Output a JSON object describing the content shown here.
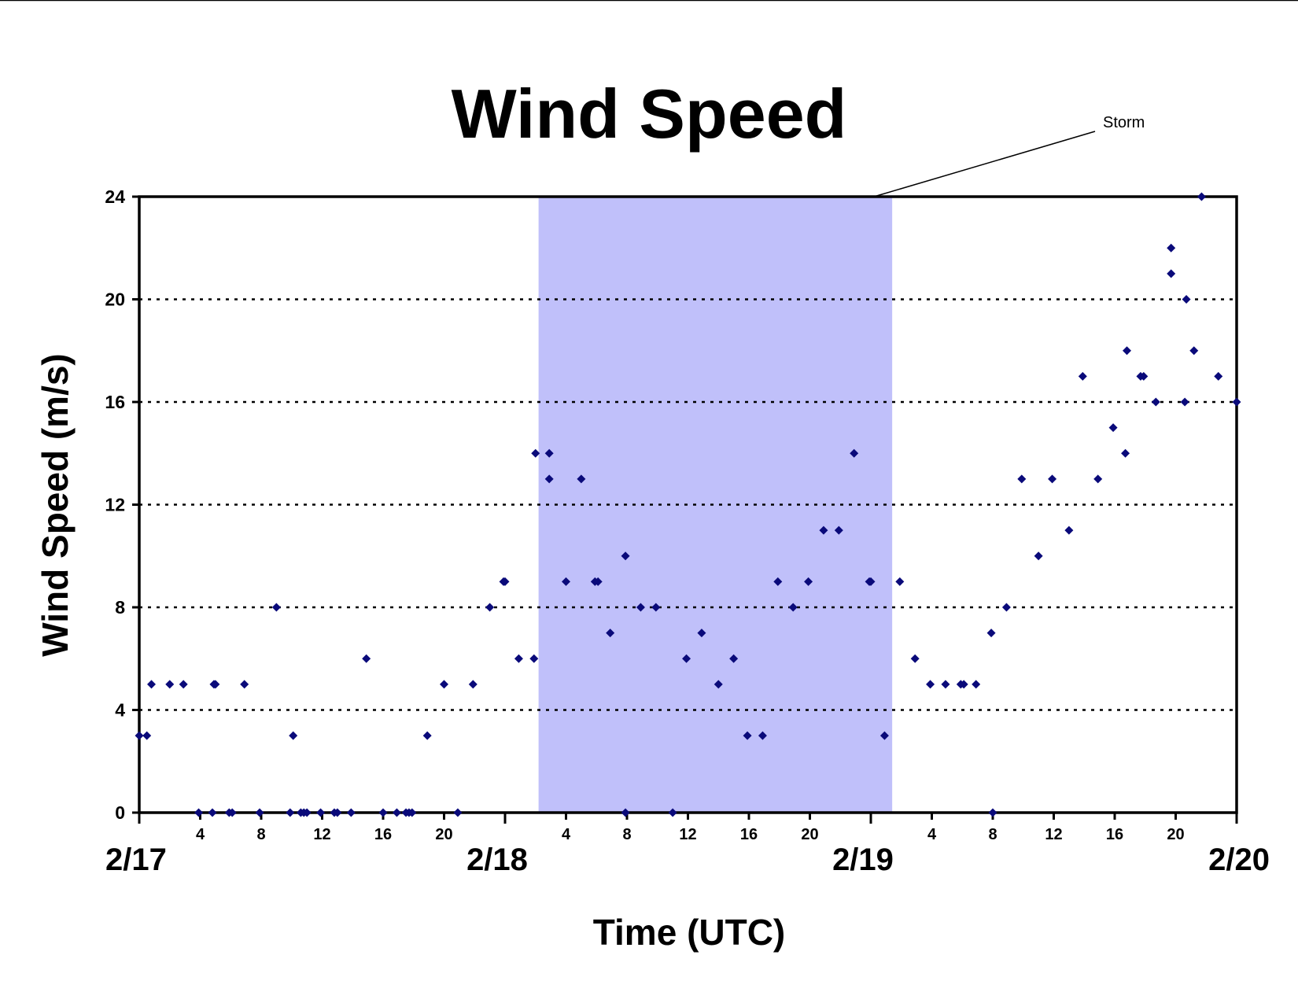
{
  "colors": {
    "background": "#ffffff",
    "storm_band": "#c0c0fa",
    "points": "#0a0a7a",
    "gridline": "#000000",
    "axes": "#000000"
  },
  "chart_data": {
    "type": "scatter",
    "title": "Wind Speed",
    "xlabel": "Time (UTC)",
    "ylabel": "Wind Speed (m/s)",
    "ylim": [
      0,
      24
    ],
    "xlim": [
      "2/17 00:00",
      "2/20 00:00"
    ],
    "x_unit": "hours since 2/17 00:00 UTC",
    "yticks": [
      "0",
      "4",
      "8",
      "12",
      "16",
      "20",
      "24"
    ],
    "hour_ticks": [
      {
        "x": 4,
        "label": "4"
      },
      {
        "x": 8,
        "label": "8"
      },
      {
        "x": 12,
        "label": "12"
      },
      {
        "x": 16,
        "label": "16"
      },
      {
        "x": 20,
        "label": "20"
      },
      {
        "x": 28,
        "label": "4"
      },
      {
        "x": 32,
        "label": "8"
      },
      {
        "x": 36,
        "label": "12"
      },
      {
        "x": 40,
        "label": "16"
      },
      {
        "x": 44,
        "label": "20"
      },
      {
        "x": 52,
        "label": "4"
      },
      {
        "x": 56,
        "label": "8"
      },
      {
        "x": 60,
        "label": "12"
      },
      {
        "x": 64,
        "label": "16"
      },
      {
        "x": 68,
        "label": "20"
      }
    ],
    "day_labels": [
      {
        "x": 0,
        "label": "2/17"
      },
      {
        "x": 24,
        "label": "2/18"
      },
      {
        "x": 48,
        "label": "2/19"
      },
      {
        "x": 72,
        "label": "2/20"
      }
    ],
    "grid": "horizontal dotted at 4, 8, 12, 16, 20",
    "legend": "none",
    "annotation": {
      "text": "Storm",
      "band_start": 26.2,
      "band_end": 49.4
    },
    "series": [
      {
        "points": [
          [
            0,
            3
          ],
          [
            0.5,
            3
          ],
          [
            0.8,
            5
          ],
          [
            2,
            5
          ],
          [
            2.9,
            5
          ],
          [
            3.9,
            0
          ],
          [
            4.8,
            0
          ],
          [
            4.9,
            5
          ],
          [
            5,
            5
          ],
          [
            5.9,
            0
          ],
          [
            6.1,
            0
          ],
          [
            6.9,
            5
          ],
          [
            7.9,
            0
          ],
          [
            9,
            8
          ],
          [
            9.9,
            0
          ],
          [
            10.1,
            3
          ],
          [
            10.6,
            0
          ],
          [
            10.8,
            0
          ],
          [
            11,
            0
          ],
          [
            11.9,
            0
          ],
          [
            12.8,
            0
          ],
          [
            13,
            0
          ],
          [
            13.9,
            0
          ],
          [
            14.9,
            6
          ],
          [
            16,
            0
          ],
          [
            16.9,
            0
          ],
          [
            17.5,
            0
          ],
          [
            17.7,
            0
          ],
          [
            17.9,
            0
          ],
          [
            18.9,
            3
          ],
          [
            20,
            5
          ],
          [
            20.9,
            0
          ],
          [
            21.9,
            5
          ],
          [
            23,
            8
          ],
          [
            23.9,
            9
          ],
          [
            24,
            9
          ],
          [
            24.9,
            6
          ],
          [
            25.9,
            6
          ],
          [
            26,
            14
          ],
          [
            26.9,
            13
          ],
          [
            26.9,
            14
          ],
          [
            28,
            9
          ],
          [
            29,
            13
          ],
          [
            29.9,
            9
          ],
          [
            30.1,
            9
          ],
          [
            30.9,
            7
          ],
          [
            31.9,
            10
          ],
          [
            31.9,
            0
          ],
          [
            32.9,
            8
          ],
          [
            33.9,
            8
          ],
          [
            35,
            0
          ],
          [
            35.9,
            6
          ],
          [
            36.9,
            7
          ],
          [
            38,
            5
          ],
          [
            39,
            6
          ],
          [
            39.9,
            3
          ],
          [
            40.9,
            3
          ],
          [
            41.9,
            9
          ],
          [
            42.9,
            8
          ],
          [
            43.9,
            9
          ],
          [
            44.9,
            11
          ],
          [
            45.9,
            11
          ],
          [
            46.9,
            14
          ],
          [
            47.9,
            9
          ],
          [
            48,
            9
          ],
          [
            48.9,
            3
          ],
          [
            49.9,
            9
          ],
          [
            50.9,
            6
          ],
          [
            51.9,
            5
          ],
          [
            52.9,
            5
          ],
          [
            53.9,
            5
          ],
          [
            54.1,
            5
          ],
          [
            54.9,
            5
          ],
          [
            55.9,
            7
          ],
          [
            56,
            0
          ],
          [
            56.9,
            8
          ],
          [
            57.9,
            13
          ],
          [
            59,
            10
          ],
          [
            59.9,
            13
          ],
          [
            61,
            11
          ],
          [
            61.9,
            17
          ],
          [
            62.9,
            13
          ],
          [
            63.9,
            15
          ],
          [
            64.7,
            14
          ],
          [
            64.8,
            18
          ],
          [
            65.7,
            17
          ],
          [
            65.9,
            17
          ],
          [
            66.7,
            16
          ],
          [
            67.7,
            22
          ],
          [
            67.7,
            21
          ],
          [
            68.6,
            16
          ],
          [
            68.7,
            20
          ],
          [
            69.2,
            18
          ],
          [
            69.7,
            24
          ],
          [
            70.8,
            17
          ],
          [
            72,
            16
          ]
        ]
      }
    ]
  }
}
